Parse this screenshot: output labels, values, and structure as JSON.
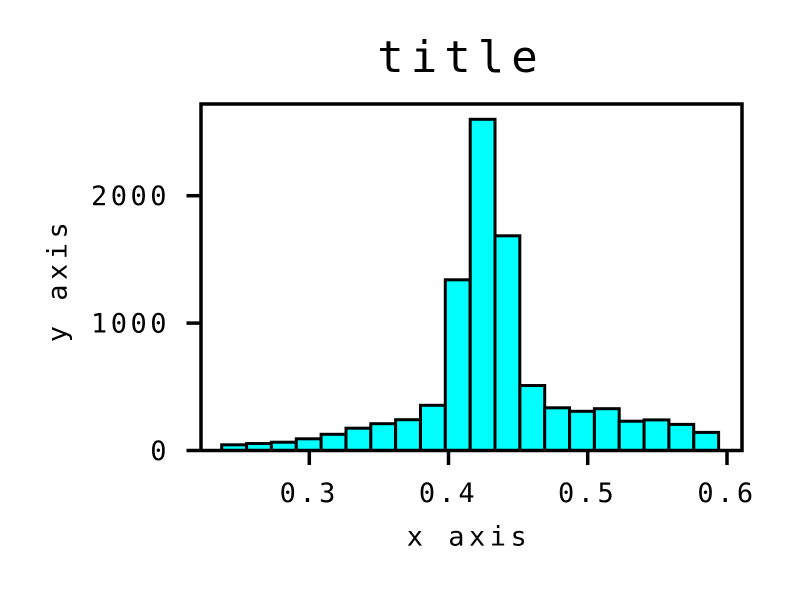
{
  "chart_data": {
    "type": "bar",
    "subtype": "histogram",
    "title": "title",
    "xlabel": "x axis",
    "ylabel": "y axis",
    "bin_start": 0.2371,
    "bin_width": 0.017845,
    "values": [
      45,
      55,
      65,
      92,
      127,
      175,
      210,
      242,
      355,
      1340,
      2600,
      1685,
      510,
      335,
      308,
      328,
      230,
      240,
      205,
      142
    ],
    "xlim": [
      0.2222,
      0.6108
    ],
    "ylim": [
      0,
      2720
    ],
    "x_ticks": [
      0.3,
      0.4,
      0.5,
      0.6
    ],
    "x_tick_labels": [
      "0.3",
      "0.4",
      "0.5",
      "0.6"
    ],
    "y_ticks": [
      0,
      1000,
      2000
    ],
    "y_tick_labels": [
      "0",
      "1000",
      "2000"
    ],
    "bar_color": "#00ffff",
    "edge_color": "#000000",
    "background_color": "#ffffff",
    "grid": false,
    "legend": null
  }
}
